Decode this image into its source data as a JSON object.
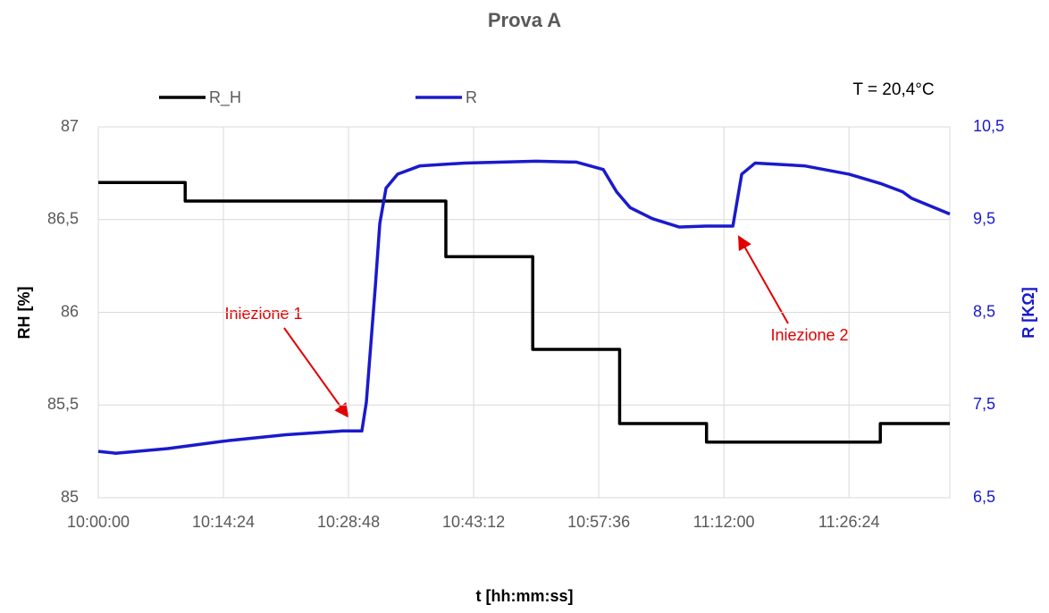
{
  "chart_data": {
    "type": "line",
    "title": "Prova A",
    "subtitle": "T = 20,4°C",
    "xlabel": "t [hh:mm:ss]",
    "ylabel": "RH [%]",
    "y2label": "R [KΩ]",
    "xlim": [
      "10:00:00",
      "11:38:00"
    ],
    "xticks": [
      "10:00:00",
      "10:14:24",
      "10:28:48",
      "10:43:12",
      "10:57:36",
      "11:12:00",
      "11:26:24"
    ],
    "ylim": [
      85,
      87
    ],
    "yticks": [
      {
        "value": 85,
        "label": "85"
      },
      {
        "value": 85.5,
        "label": "85,5"
      },
      {
        "value": 86,
        "label": "86"
      },
      {
        "value": 86.5,
        "label": "86,5"
      },
      {
        "value": 87,
        "label": "87"
      }
    ],
    "y2lim": [
      6.5,
      10.5
    ],
    "y2ticks": [
      {
        "value": 6.5,
        "label": "6,5"
      },
      {
        "value": 7.5,
        "label": "7,5"
      },
      {
        "value": 8.5,
        "label": "8,5"
      },
      {
        "value": 9.5,
        "label": "9,5"
      },
      {
        "value": 10.5,
        "label": "10,5"
      }
    ],
    "grid": true,
    "legend": "top",
    "annotations": [
      "Iniezione 1",
      "Iniezione 2"
    ],
    "series": [
      {
        "name": "R_H",
        "color": "#000000",
        "x": [
          "10:00:00",
          "10:10:00",
          "10:10:00",
          "10:40:00",
          "10:40:00",
          "10:50:00",
          "10:50:00",
          "11:00:00",
          "11:00:00",
          "11:10:00",
          "11:10:00",
          "11:30:00",
          "11:30:00",
          "11:38:00"
        ],
        "values": [
          86.7,
          86.7,
          86.6,
          86.6,
          86.3,
          86.3,
          85.8,
          85.8,
          85.4,
          85.4,
          85.3,
          85.3,
          85.4,
          85.4
        ]
      },
      {
        "name": "R",
        "color": "#1a1acc",
        "axis": "y2",
        "x": [
          "10:00:00",
          "10:02:00",
          "10:08:00",
          "10:14:24",
          "10:21:36",
          "10:28:00",
          "10:30:20",
          "10:30:51",
          "10:31:53",
          "10:32:24",
          "10:33:07",
          "10:34:27",
          "10:37:02",
          "10:42:10",
          "10:50:24",
          "10:55:02",
          "10:58:07",
          "10:59:39",
          "11:01:12",
          "11:03:46",
          "11:06:51",
          "11:09:56",
          "11:13:02",
          "11:13:26",
          "11:14:03",
          "11:15:36",
          "11:21:15",
          "11:26:24",
          "11:30:00",
          "11:32:34",
          "11:33:36",
          "11:38:00"
        ],
        "values": [
          7.0,
          6.98,
          7.03,
          7.11,
          7.18,
          7.22,
          7.22,
          7.53,
          8.78,
          9.46,
          9.84,
          9.99,
          10.08,
          10.11,
          10.13,
          10.12,
          10.04,
          9.8,
          9.63,
          9.51,
          9.42,
          9.43,
          9.43,
          9.65,
          9.99,
          10.11,
          10.08,
          9.99,
          9.89,
          9.8,
          9.73,
          9.56
        ]
      }
    ]
  }
}
